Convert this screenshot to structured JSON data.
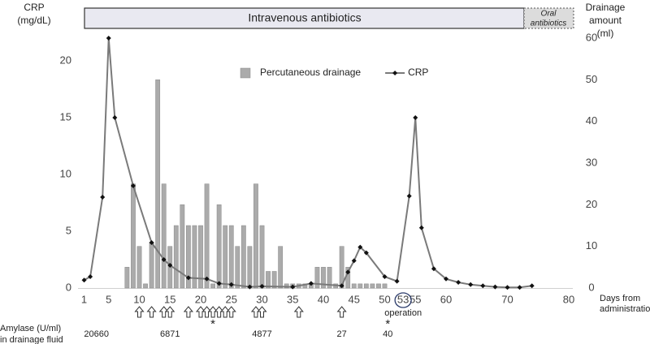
{
  "chart_data": {
    "type": "combo",
    "phases": [
      [
        "Intravenous antibiotics"
      ],
      [
        "Oral",
        "antibiotics"
      ]
    ],
    "y_label": [
      "CRP",
      "(mg/dL)"
    ],
    "y2_label": [
      "Drainage",
      "amount",
      "(ml)"
    ],
    "x_label": [
      "Days from",
      "administration"
    ],
    "xlim": [
      0,
      80
    ],
    "xticks": [
      1,
      5,
      10,
      15,
      20,
      25,
      30,
      35,
      40,
      45,
      50,
      53,
      55,
      60,
      70,
      80
    ],
    "ylim": [
      0,
      22
    ],
    "yticks": [
      0,
      5,
      10,
      15,
      20
    ],
    "y2lim": [
      0,
      60
    ],
    "y2ticks": [
      0,
      10,
      20,
      30,
      40,
      50,
      60
    ],
    "legend": "top-center",
    "series": [
      {
        "name": "Percutaneous drainage",
        "type": "bar",
        "axis": "y2",
        "color": "#ababab",
        "x": [
          8,
          9,
          10,
          11,
          12,
          13,
          14,
          15,
          16,
          17,
          18,
          19,
          20,
          21,
          22,
          23,
          24,
          25,
          26,
          27,
          28,
          29,
          30,
          31,
          32,
          33,
          34,
          35,
          36,
          37,
          38,
          39,
          40,
          41,
          42,
          43,
          44,
          45,
          46,
          47,
          48,
          49,
          50
        ],
        "values": [
          5,
          25,
          10,
          1,
          11,
          50,
          25,
          10,
          15,
          20,
          15,
          15,
          15,
          25,
          1,
          20,
          15,
          15,
          10,
          15,
          10,
          25,
          15,
          4,
          4,
          10,
          1,
          1,
          1,
          1,
          1,
          5,
          5,
          5,
          1,
          10,
          5,
          1,
          1,
          1,
          1,
          1,
          1
        ]
      },
      {
        "name": "CRP",
        "type": "line",
        "color": "#7a7a7a",
        "marker_color": "#111111",
        "x": [
          1,
          2,
          4,
          5,
          6,
          9,
          12,
          14,
          15,
          18,
          21,
          23,
          25,
          28,
          30,
          35,
          38,
          43,
          44,
          45,
          46,
          47,
          50,
          52,
          54,
          55,
          56,
          58,
          60,
          62,
          64,
          66,
          68,
          70,
          72,
          74
        ],
        "values": [
          0.7,
          1,
          8,
          22,
          15,
          9,
          4,
          2.5,
          2,
          0.9,
          0.8,
          0.4,
          0.3,
          0.1,
          0.15,
          0.1,
          0.4,
          0.2,
          1.4,
          2.4,
          3.6,
          3.1,
          1,
          0.6,
          8.1,
          15,
          5.3,
          1.7,
          0.8,
          0.5,
          0.3,
          0.2,
          0.1,
          0.05,
          0.05,
          0.2
        ]
      }
    ],
    "annotations": [
      {
        "text": "operation",
        "x": 53
      }
    ],
    "asterisks": [
      "*",
      "*"
    ],
    "amylase": {
      "label": [
        "Amylase (U/ml)",
        "in drainage fluid"
      ],
      "values": [
        20660,
        6871,
        4877,
        27,
        40
      ]
    }
  }
}
